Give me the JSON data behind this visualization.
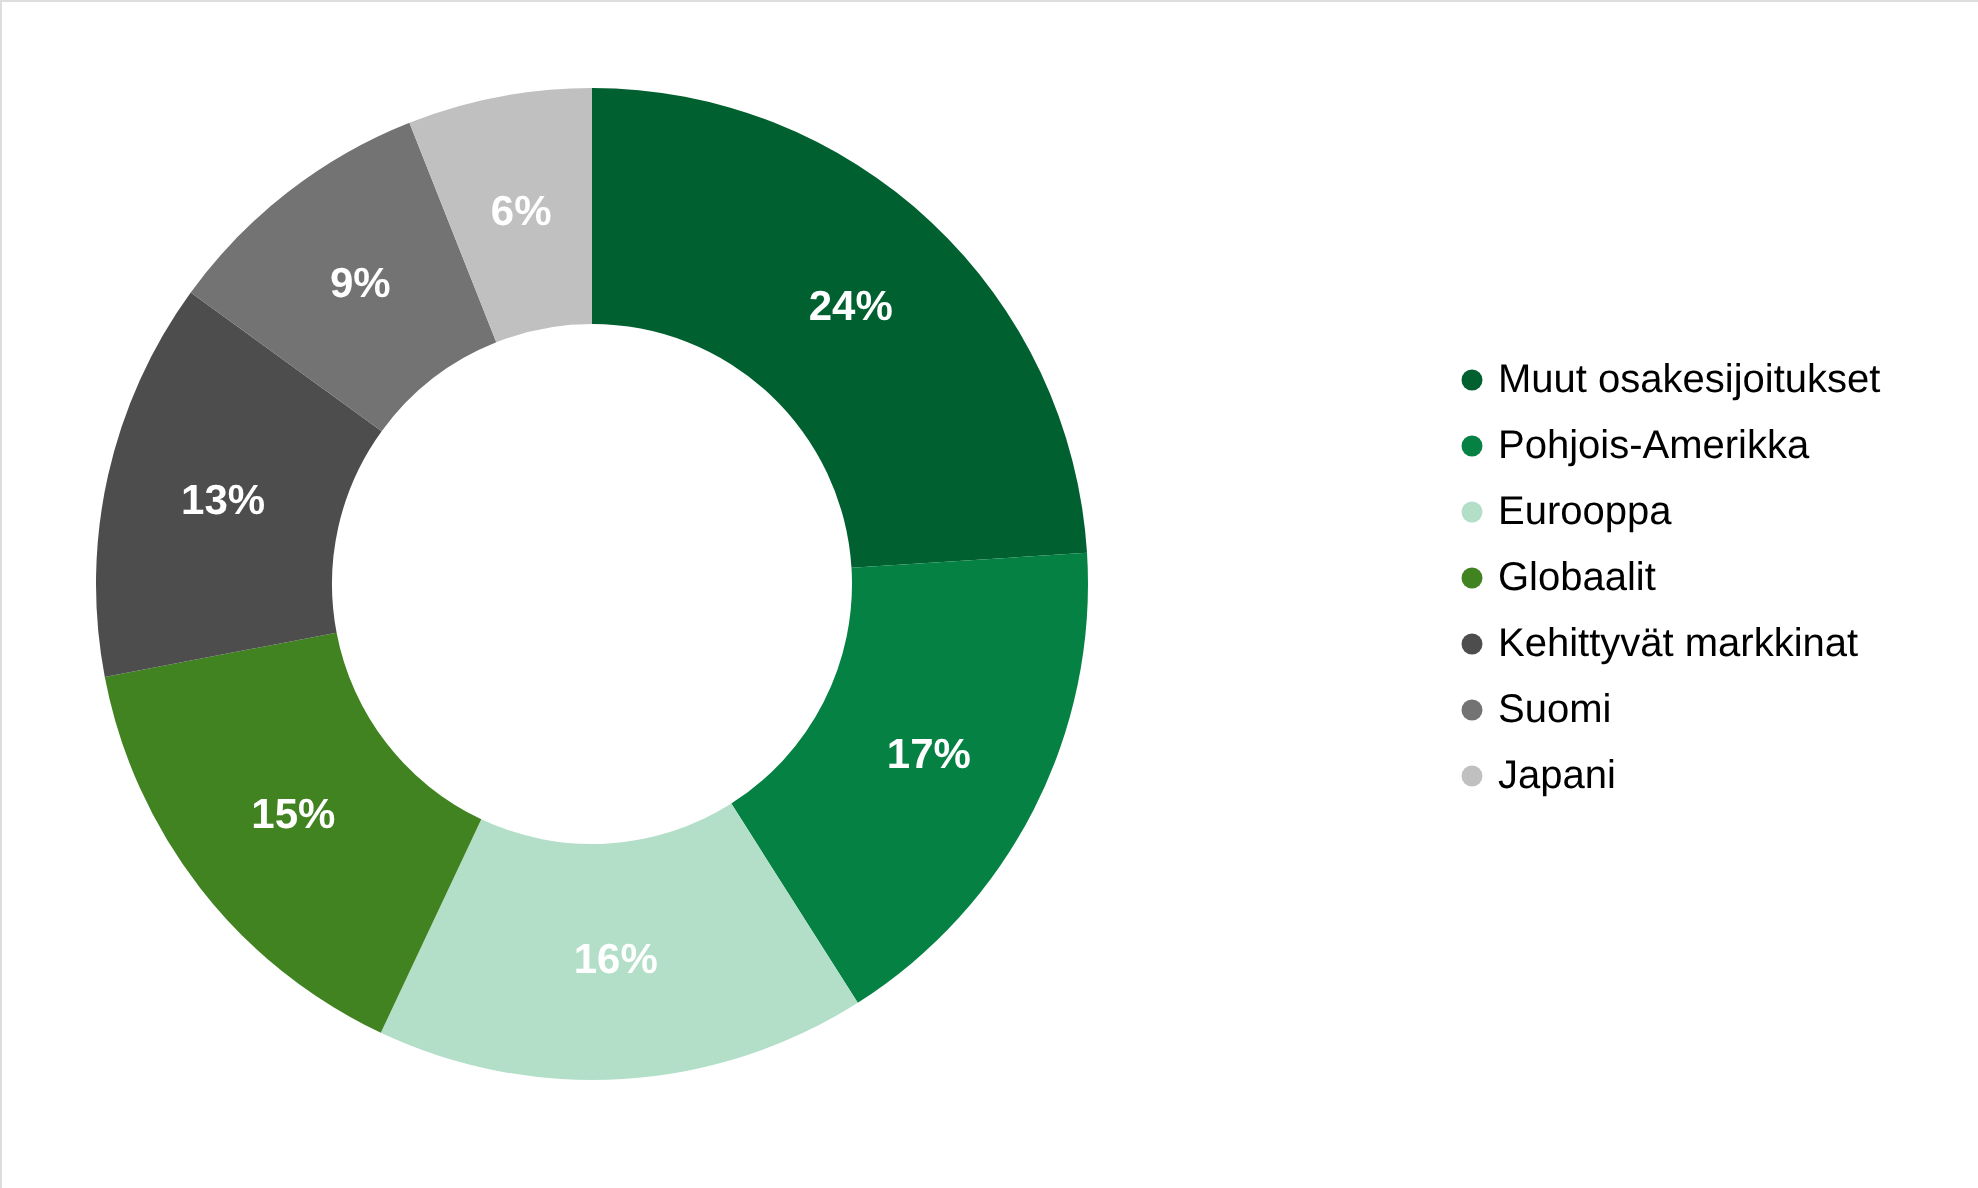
{
  "chart_data": {
    "type": "donut",
    "categories": [
      "Muut osakesijoitukset",
      "Pohjois-Amerikka",
      "Eurooppa",
      "Globaalit",
      "Kehittyvät markkinat",
      "Suomi",
      "Japani"
    ],
    "values": [
      24,
      17,
      16,
      15,
      13,
      9,
      6
    ],
    "colors": [
      "#00602f",
      "#058243",
      "#b3dfc9",
      "#418320",
      "#4d4d4d",
      "#737373",
      "#c0c0c0"
    ],
    "value_labels": [
      "24%",
      "17%",
      "16%",
      "15%",
      "13%",
      "9%",
      "6%"
    ],
    "legend": "right"
  }
}
